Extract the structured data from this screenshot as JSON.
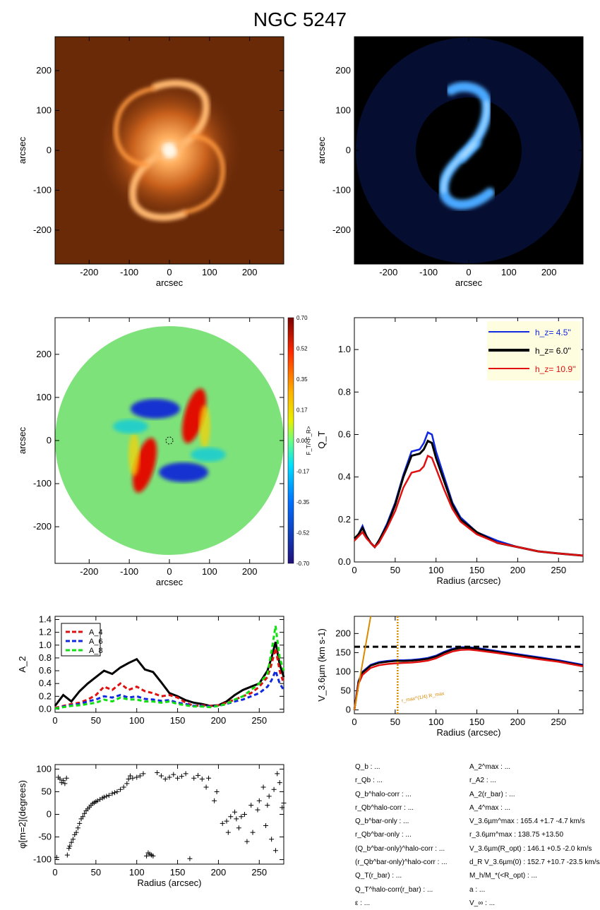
{
  "title": "NGC 5247",
  "colors": {
    "h1": "#1028e0",
    "h2": "#000000",
    "h3": "#e01010",
    "A4": "#e01010",
    "A6": "#1028e0",
    "A8": "#10e010",
    "orange": "#d98a00",
    "cmap_top": "#7a0000",
    "cmap_bottom": "#20107a"
  },
  "panels": {
    "image1": {
      "xlabel": "arcsec",
      "ylabel": "arcsec",
      "xticks": [
        "-200",
        "-100",
        "0",
        "100",
        "200"
      ],
      "yticks": [
        "200",
        "100",
        "0",
        "-100",
        "-200"
      ],
      "bg": "#6a2a08",
      "colors": [
        "#ffd9a0",
        "#ff9a40"
      ]
    },
    "image2": {
      "xlabel": "arcsec",
      "ylabel": "arcsec",
      "xticks": [
        "-200",
        "-100",
        "0",
        "100",
        "200"
      ],
      "yticks": [
        "200",
        "100",
        "0",
        "-100",
        "-200"
      ],
      "bg": "#000000",
      "colors": [
        "#80c8ff",
        "#1a6af0"
      ]
    },
    "map": {
      "xlabel": "arcsec",
      "ylabel": "arcsec",
      "xticks": [
        "-200",
        "-100",
        "0",
        "100",
        "200"
      ],
      "yticks": [
        "200",
        "100",
        "0",
        "-100",
        "-200"
      ],
      "cbar_ticks": [
        "0.70",
        "0.52",
        "0.35",
        "0.17",
        "0.00",
        "-0.17",
        "-0.35",
        "-0.52",
        "-0.70"
      ],
      "cbar_label": "F_T/<F_R>"
    },
    "qt": {
      "xlabel": "Radius (arcsec)",
      "ylabel": "Q_T",
      "xticks": [
        "0",
        "50",
        "100",
        "150",
        "200",
        "250"
      ],
      "yticks": [
        "0.0",
        "0.2",
        "0.4",
        "0.6",
        "0.8",
        "1.0"
      ],
      "legend": [
        {
          "label": "h_z=   4.5''",
          "colorKey": "h1"
        },
        {
          "label": "h_z=   6.0''",
          "colorKey": "h2"
        },
        {
          "label": "h_z= 10.9''",
          "colorKey": "h3"
        }
      ]
    },
    "amp": {
      "ylabel": "A_2",
      "xticks": [
        "0",
        "50",
        "100",
        "150",
        "200",
        "250"
      ],
      "yticks": [
        "0.0",
        "0.2",
        "0.4",
        "0.6",
        "0.8",
        "1.0",
        "1.2",
        "1.4"
      ],
      "legend": [
        "A_4",
        "A_6",
        "A_8"
      ]
    },
    "vel": {
      "xlabel": "Radius (arcsec)",
      "ylabel": "V_3.6µm (km s-1)",
      "xticks": [
        "0",
        "50",
        "100",
        "150",
        "200",
        "250"
      ],
      "yticks": [
        "0",
        "50",
        "100",
        "150",
        "200"
      ],
      "annot": "r_max^(1/4) R_max"
    },
    "phase": {
      "xlabel": "Radius (arcsec)",
      "ylabel": "φ[m=2](degrees)",
      "xticks": [
        "0",
        "50",
        "100",
        "150",
        "200",
        "250"
      ],
      "yticks": [
        "100",
        "50",
        "0",
        "-50",
        "-100"
      ]
    }
  },
  "params_left": [
    "Q_b : ...",
    "r_Qb : ...",
    "Q_b^halo-corr : ...",
    "r_Qb^halo-corr : ...",
    "Q_b^bar-only : ...",
    "r_Qb^bar-only : ...",
    "(Q_b^bar-only)^halo-corr : ...",
    "(r_Qb^bar-only)^halo-corr : ...",
    "Q_T(r_bar) : ...",
    "Q_T^halo-corr(r_bar) : ...",
    "ε : ..."
  ],
  "params_right": [
    "A_2^max : ...",
    "r_A2 : ...",
    "A_2(r_bar) : ...",
    "A_4^max : ...",
    "V_3.6µm^max :  165.4 +1.7 -4.7 km/s",
    "r_3.6µm^max :  138.75 +13.50",
    "V_3.6µm(R_opt) :  146.1 +0.5 -2.0 km/s",
    "d_R V_3.6µm(0) :  152.7 +10.7 -23.5 km/s/kpc",
    "M_h/M_*(<R_opt) : ...",
    "a : ...",
    "V_∞ : ..."
  ],
  "chart_data": [
    {
      "type": "line",
      "title": "",
      "xlabel": "Radius (arcsec)",
      "ylabel": "Q_T",
      "xlim": [
        0,
        280
      ],
      "ylim": [
        0,
        1.15
      ],
      "x": [
        0,
        5,
        10,
        15,
        20,
        25,
        30,
        40,
        50,
        60,
        70,
        80,
        85,
        90,
        95,
        100,
        110,
        120,
        130,
        150,
        175,
        200,
        225,
        250,
        280
      ],
      "series": [
        {
          "name": "h_z= 4.5''",
          "values": [
            0.11,
            0.13,
            0.17,
            0.12,
            0.09,
            0.07,
            0.1,
            0.18,
            0.28,
            0.41,
            0.52,
            0.53,
            0.56,
            0.61,
            0.6,
            0.52,
            0.4,
            0.28,
            0.21,
            0.14,
            0.1,
            0.07,
            0.05,
            0.04,
            0.03
          ]
        },
        {
          "name": "h_z= 6.0''",
          "values": [
            0.11,
            0.13,
            0.16,
            0.12,
            0.09,
            0.07,
            0.1,
            0.17,
            0.27,
            0.4,
            0.5,
            0.51,
            0.53,
            0.57,
            0.56,
            0.49,
            0.38,
            0.27,
            0.2,
            0.14,
            0.09,
            0.07,
            0.05,
            0.04,
            0.03
          ]
        },
        {
          "name": "h_z= 10.9''",
          "values": [
            0.1,
            0.12,
            0.14,
            0.11,
            0.09,
            0.07,
            0.09,
            0.16,
            0.24,
            0.35,
            0.42,
            0.43,
            0.45,
            0.5,
            0.49,
            0.44,
            0.34,
            0.25,
            0.19,
            0.13,
            0.09,
            0.07,
            0.05,
            0.04,
            0.03
          ]
        }
      ]
    },
    {
      "type": "line",
      "title": "",
      "ylabel": "A_2",
      "xlim": [
        0,
        280
      ],
      "ylim": [
        0,
        1.45
      ],
      "x": [
        0,
        10,
        20,
        30,
        40,
        50,
        60,
        70,
        80,
        90,
        100,
        110,
        120,
        130,
        140,
        150,
        160,
        170,
        180,
        190,
        200,
        210,
        220,
        230,
        240,
        250,
        260,
        265,
        270,
        275,
        280
      ],
      "series": [
        {
          "name": "A_2",
          "values": [
            0.05,
            0.22,
            0.12,
            0.28,
            0.4,
            0.5,
            0.6,
            0.55,
            0.65,
            0.72,
            0.78,
            0.62,
            0.58,
            0.42,
            0.25,
            0.2,
            0.14,
            0.1,
            0.08,
            0.05,
            0.06,
            0.12,
            0.22,
            0.3,
            0.35,
            0.4,
            0.6,
            0.8,
            1.05,
            0.7,
            0.5
          ]
        },
        {
          "name": "A_4",
          "values": [
            0.02,
            0.05,
            0.08,
            0.1,
            0.15,
            0.22,
            0.35,
            0.3,
            0.4,
            0.3,
            0.35,
            0.28,
            0.25,
            0.2,
            0.22,
            0.18,
            0.1,
            0.05,
            0.06,
            0.05,
            0.06,
            0.1,
            0.15,
            0.2,
            0.25,
            0.35,
            0.5,
            0.7,
            0.95,
            0.6,
            0.4
          ]
        },
        {
          "name": "A_6",
          "values": [
            0.01,
            0.04,
            0.06,
            0.08,
            0.12,
            0.15,
            0.2,
            0.18,
            0.22,
            0.18,
            0.2,
            0.16,
            0.15,
            0.13,
            0.14,
            0.1,
            0.08,
            0.05,
            0.05,
            0.04,
            0.05,
            0.08,
            0.12,
            0.15,
            0.2,
            0.25,
            0.35,
            0.45,
            0.6,
            0.4,
            0.3
          ]
        },
        {
          "name": "A_8",
          "values": [
            0.01,
            0.03,
            0.05,
            0.06,
            0.08,
            0.1,
            0.15,
            0.12,
            0.18,
            0.15,
            0.15,
            0.12,
            0.12,
            0.1,
            0.12,
            0.08,
            0.06,
            0.04,
            0.04,
            0.03,
            0.05,
            0.08,
            0.15,
            0.2,
            0.3,
            0.4,
            0.55,
            0.9,
            1.3,
            0.8,
            0.6
          ]
        }
      ]
    },
    {
      "type": "line",
      "title": "",
      "xlabel": "Radius (arcsec)",
      "ylabel": "V_3.6µm (km s-1)",
      "xlim": [
        0,
        280
      ],
      "ylim": [
        -10,
        245
      ],
      "x": [
        0,
        5,
        10,
        20,
        30,
        40,
        50,
        60,
        70,
        80,
        90,
        100,
        110,
        120,
        130,
        140,
        150,
        175,
        200,
        225,
        250,
        280
      ],
      "series": [
        {
          "name": "h_z= 4.5''",
          "values": [
            0,
            75,
            100,
            118,
            125,
            128,
            130,
            130,
            131,
            133,
            136,
            142,
            152,
            160,
            164,
            164,
            162,
            154,
            146,
            138,
            130,
            118
          ]
        },
        {
          "name": "h_z= 6.0''",
          "values": [
            0,
            73,
            98,
            116,
            123,
            126,
            128,
            128,
            129,
            131,
            134,
            140,
            150,
            158,
            162,
            162,
            160,
            152,
            144,
            136,
            128,
            116
          ]
        },
        {
          "name": "h_z= 10.9''",
          "values": [
            0,
            68,
            92,
            110,
            117,
            120,
            122,
            123,
            124,
            126,
            129,
            135,
            145,
            153,
            157,
            158,
            156,
            149,
            141,
            133,
            126,
            114
          ]
        }
      ],
      "hline": 165.4,
      "vline": 53,
      "line_through_origin": {
        "x": 20,
        "y": 245
      }
    },
    {
      "type": "scatter",
      "title": "",
      "xlabel": "Radius (arcsec)",
      "ylabel": "φ[m=2](degrees)",
      "xlim": [
        0,
        280
      ],
      "ylim": [
        -110,
        110
      ],
      "points": [
        [
          2,
          -95
        ],
        [
          4,
          82
        ],
        [
          6,
          78
        ],
        [
          8,
          70
        ],
        [
          10,
          75
        ],
        [
          12,
          68
        ],
        [
          14,
          80
        ],
        [
          15,
          -90
        ],
        [
          17,
          -75
        ],
        [
          18,
          -70
        ],
        [
          20,
          -62
        ],
        [
          22,
          -55
        ],
        [
          24,
          -45
        ],
        [
          26,
          -40
        ],
        [
          28,
          -30
        ],
        [
          30,
          -20
        ],
        [
          32,
          -10
        ],
        [
          34,
          -5
        ],
        [
          36,
          2
        ],
        [
          38,
          8
        ],
        [
          40,
          12
        ],
        [
          42,
          16
        ],
        [
          44,
          20
        ],
        [
          46,
          24
        ],
        [
          48,
          26
        ],
        [
          50,
          28
        ],
        [
          52,
          30
        ],
        [
          55,
          33
        ],
        [
          58,
          36
        ],
        [
          60,
          38
        ],
        [
          63,
          40
        ],
        [
          66,
          42
        ],
        [
          70,
          46
        ],
        [
          73,
          48
        ],
        [
          76,
          50
        ],
        [
          80,
          55
        ],
        [
          84,
          60
        ],
        [
          88,
          68
        ],
        [
          90,
          78
        ],
        [
          92,
          85
        ],
        [
          95,
          80
        ],
        [
          100,
          82
        ],
        [
          104,
          85
        ],
        [
          108,
          90
        ],
        [
          112,
          -92
        ],
        [
          114,
          -85
        ],
        [
          116,
          -88
        ],
        [
          118,
          -90
        ],
        [
          120,
          -92
        ],
        [
          125,
          92
        ],
        [
          130,
          85
        ],
        [
          135,
          78
        ],
        [
          140,
          82
        ],
        [
          145,
          88
        ],
        [
          150,
          80
        ],
        [
          155,
          84
        ],
        [
          160,
          90
        ],
        [
          165,
          -98
        ],
        [
          170,
          80
        ],
        [
          175,
          86
        ],
        [
          180,
          78
        ],
        [
          185,
          60
        ],
        [
          188,
          80
        ],
        [
          195,
          30
        ],
        [
          198,
          50
        ],
        [
          205,
          -20
        ],
        [
          210,
          -15
        ],
        [
          212,
          -40
        ],
        [
          215,
          -5
        ],
        [
          220,
          5
        ],
        [
          222,
          -10
        ],
        [
          225,
          -30
        ],
        [
          228,
          -5
        ],
        [
          232,
          0
        ],
        [
          235,
          -60
        ],
        [
          240,
          20
        ],
        [
          242,
          -40
        ],
        [
          248,
          10
        ],
        [
          250,
          30
        ],
        [
          255,
          60
        ],
        [
          258,
          -25
        ],
        [
          260,
          20
        ],
        [
          262,
          40
        ],
        [
          265,
          -55
        ],
        [
          268,
          55
        ],
        [
          270,
          -80
        ],
        [
          272,
          90
        ],
        [
          275,
          70
        ],
        [
          278,
          15
        ],
        [
          280,
          25
        ]
      ]
    }
  ]
}
